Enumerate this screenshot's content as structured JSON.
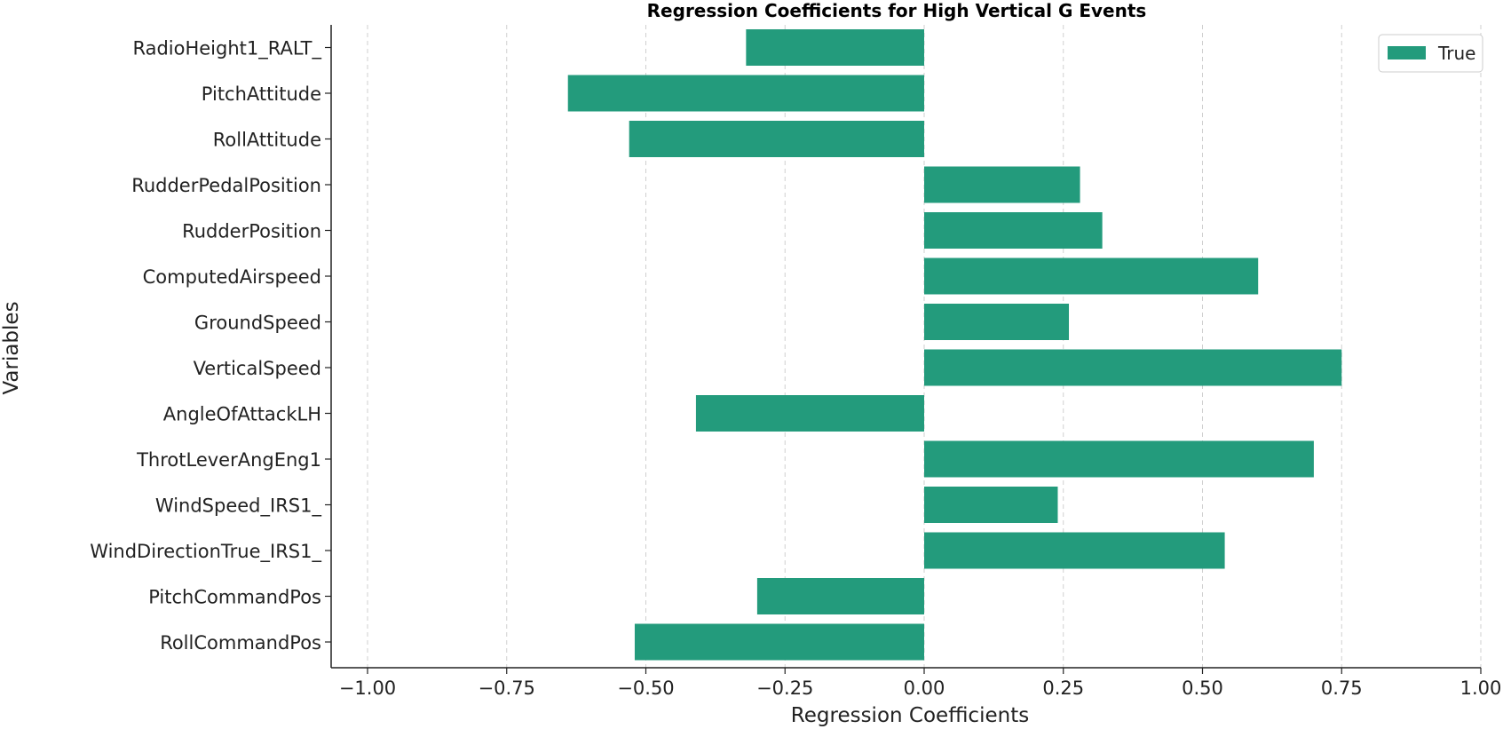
{
  "chart_data": {
    "type": "bar",
    "orientation": "horizontal",
    "title": "Regression Coefficients for High Vertical G Events",
    "xlabel": "Regression Coefficients",
    "ylabel": "Variables",
    "xlim": [
      -1.0,
      1.0
    ],
    "xticks": [
      -1.0,
      -0.75,
      -0.5,
      -0.25,
      0.0,
      0.25,
      0.5,
      0.75,
      1.0
    ],
    "xtick_labels": [
      "−1.00",
      "−0.75",
      "−0.50",
      "−0.25",
      "0.00",
      "0.25",
      "0.50",
      "0.75",
      "1.00"
    ],
    "grid": "x dashed",
    "legend": {
      "position": "top-right"
    },
    "categories": [
      "RadioHeight1_RALT_",
      "PitchAttitude",
      "RollAttitude",
      "RudderPedalPosition",
      "RudderPosition",
      "ComputedAirspeed",
      "GroundSpeed",
      "VerticalSpeed",
      "AngleOfAttackLH",
      "ThrotLeverAngEng1",
      "WindSpeed_IRS1_",
      "WindDirectionTrue_IRS1_",
      "PitchCommandPos",
      "RollCommandPos"
    ],
    "series": [
      {
        "name": "True",
        "color": "#239b7c",
        "values": [
          -0.32,
          -0.64,
          -0.53,
          0.28,
          0.32,
          0.6,
          0.26,
          0.75,
          -0.41,
          0.7,
          0.24,
          0.54,
          -0.3,
          -0.52
        ]
      }
    ]
  }
}
